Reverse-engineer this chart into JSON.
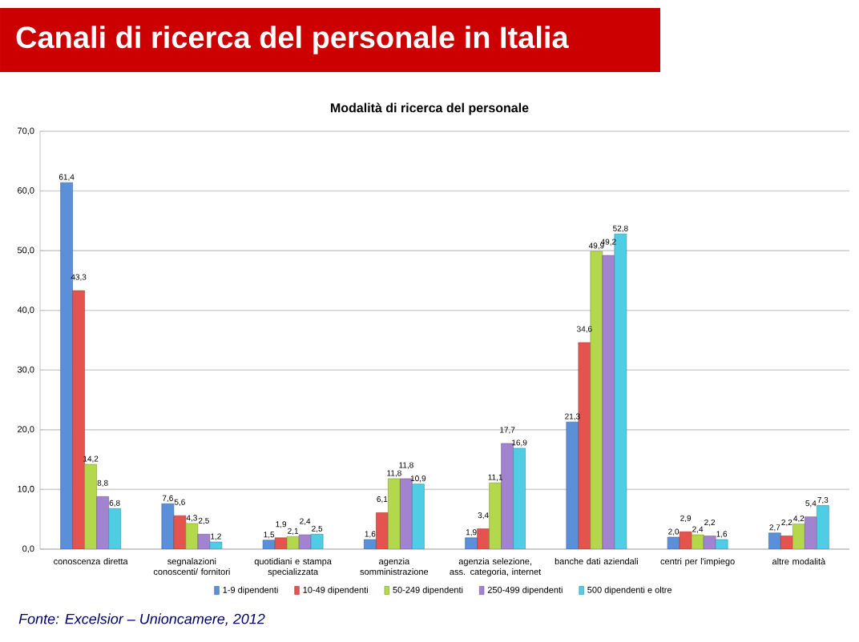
{
  "chart_data": {
    "type": "bar",
    "title": "Canali di ricerca del personale in Italia",
    "subtitle": "Modalità di ricerca del personale",
    "categories": [
      "conoscenza diretta",
      "segnalazioni conoscenti/ fornitori",
      "quotidiani e stampa specializzata",
      "agenzia somministrazione",
      "agenzia selezione, ass. categoria, internet",
      "banche dati aziendali",
      "centri per l'impiego",
      "altre modalità"
    ],
    "series": [
      {
        "name": "1-9 dipendenti",
        "color": "#5b8fd9",
        "values": [
          61.4,
          7.6,
          1.5,
          1.6,
          1.9,
          21.3,
          2.0,
          2.7
        ],
        "value_labels": [
          "61,4",
          "7,6",
          "1,5",
          "1,6",
          "1,9",
          "21,3",
          "2,0",
          "2,7"
        ]
      },
      {
        "name": "10-49 dipendenti",
        "color": "#e5534f",
        "values": [
          43.3,
          5.6,
          1.9,
          6.1,
          3.4,
          34.6,
          2.9,
          2.2
        ],
        "value_labels": [
          "43,3",
          "5,6",
          "1,9",
          "6,1",
          "3,4",
          "34,6",
          "2,9",
          "2,2"
        ]
      },
      {
        "name": "50-249 dipendenti",
        "color": "#b4d84c",
        "values": [
          14.2,
          4.3,
          2.1,
          11.8,
          11.1,
          49.9,
          2.4,
          4.2
        ],
        "value_labels": [
          "14,2",
          "4,3",
          "2,1",
          "11,8",
          "11,1",
          "49,9",
          "2,4",
          "4,2"
        ]
      },
      {
        "name": "250-499 dipendenti",
        "color": "#a283cf",
        "values": [
          8.8,
          2.5,
          2.4,
          11.8,
          17.7,
          49.2,
          2.2,
          5.4
        ],
        "value_labels": [
          "8,8",
          "2,5",
          "2,4",
          "11,8",
          "17,7",
          "49,2",
          "2,2",
          "5,4"
        ]
      },
      {
        "name": "500 dipendenti e oltre",
        "color": "#4fcde4",
        "values": [
          6.8,
          1.2,
          2.5,
          10.9,
          16.9,
          52.8,
          1.6,
          7.3
        ],
        "value_labels": [
          "6,8",
          "1,2",
          "2,5",
          "10,9",
          "16,9",
          "52,8",
          "1,6",
          "7,3"
        ]
      }
    ],
    "ylim": [
      0,
      70
    ],
    "yticks": [
      {
        "value": 0,
        "label": "0,0"
      },
      {
        "value": 10,
        "label": "10,0"
      },
      {
        "value": 20,
        "label": "20,0"
      },
      {
        "value": 30,
        "label": "30,0"
      },
      {
        "value": 40,
        "label": "40,0"
      },
      {
        "value": 50,
        "label": "50,0"
      },
      {
        "value": 60,
        "label": "60,0"
      },
      {
        "value": 70,
        "label": "70,0"
      }
    ],
    "grid": "y",
    "legend": "bottom",
    "annotations": [
      "*Fonte: Excelsior – Unioncamere, 2012*"
    ]
  }
}
